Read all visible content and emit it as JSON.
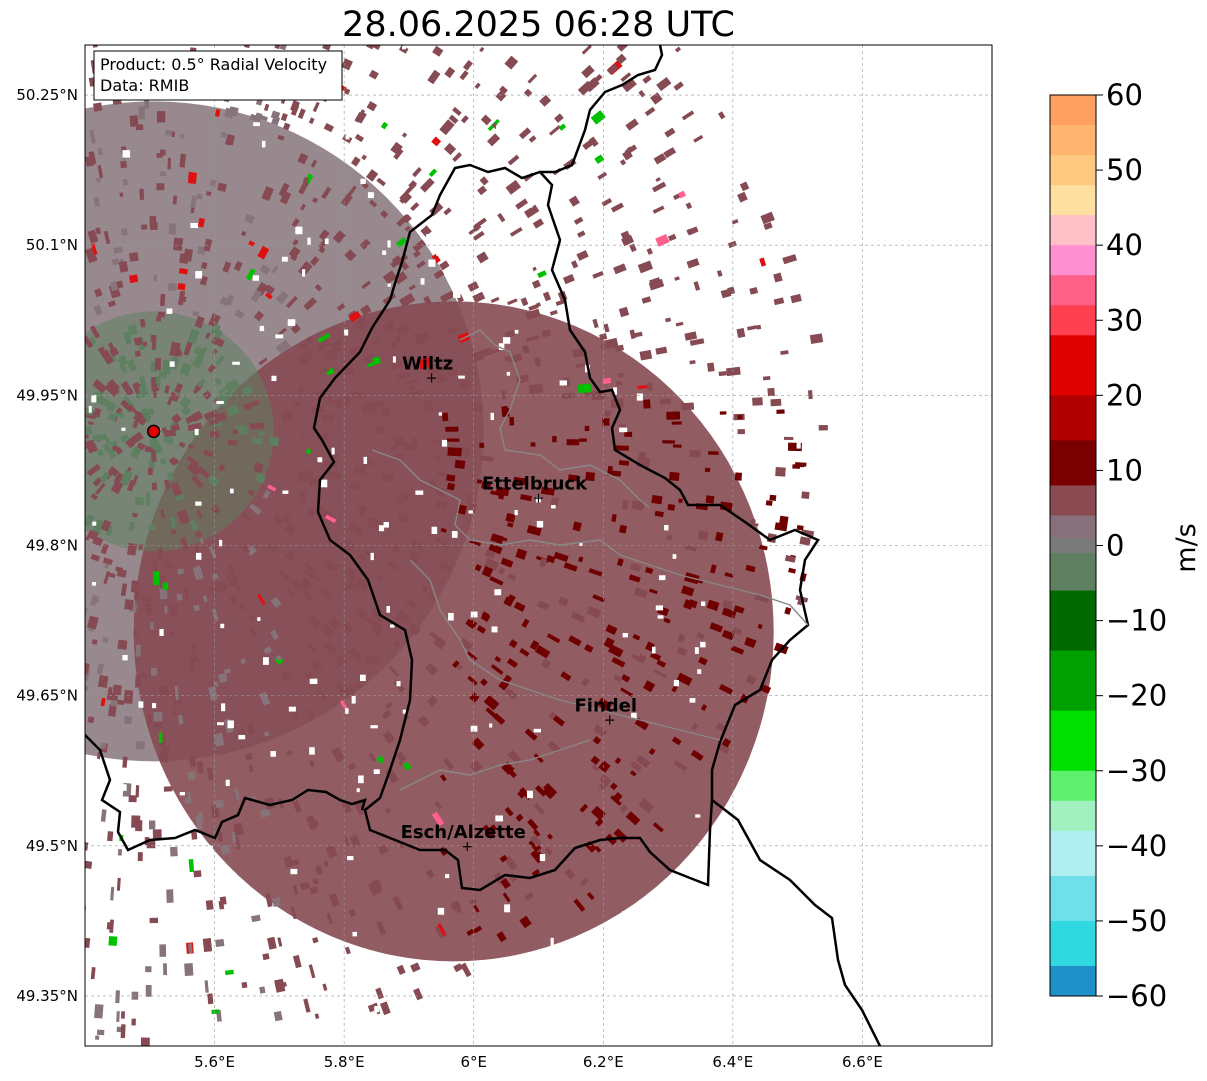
{
  "title": "28.06.2025 06:28 UTC",
  "info_box": {
    "product": "Product: 0.5° Radial Velocity",
    "data": "Data: RMIB"
  },
  "axes": {
    "x_ticks": [
      {
        "value": 5.6,
        "label": "5.6°E"
      },
      {
        "value": 5.8,
        "label": "5.8°E"
      },
      {
        "value": 6.0,
        "label": "6°E"
      },
      {
        "value": 6.2,
        "label": "6.2°E"
      },
      {
        "value": 6.4,
        "label": "6.4°E"
      },
      {
        "value": 6.6,
        "label": "6.6°E"
      }
    ],
    "y_ticks": [
      {
        "value": 50.25,
        "label": "50.25°N"
      },
      {
        "value": 50.1,
        "label": "50.1°N"
      },
      {
        "value": 49.95,
        "label": "49.95°N"
      },
      {
        "value": 49.8,
        "label": "49.8°N"
      },
      {
        "value": 49.65,
        "label": "49.65°N"
      },
      {
        "value": 49.5,
        "label": "49.5°N"
      },
      {
        "value": 49.35,
        "label": "49.35°N"
      }
    ],
    "lon_range": [
      5.4,
      6.8
    ],
    "lat_range": [
      49.3,
      50.3
    ],
    "grid": true
  },
  "cities": [
    {
      "name": "Wiltz",
      "lon": 5.935,
      "lat": 49.968
    },
    {
      "name": "Ettelbruck",
      "lon": 6.1,
      "lat": 49.848
    },
    {
      "name": "Findel",
      "lon": 6.21,
      "lat": 49.626
    },
    {
      "name": "Esch/Alzette",
      "lon": 5.99,
      "lat": 49.5
    }
  ],
  "radar_site": {
    "lon": 5.506,
    "lat": 49.914
  },
  "colorbar": {
    "label": "m/s",
    "min": -60,
    "max": 60,
    "ticks": [
      {
        "value": 60,
        "label": "60"
      },
      {
        "value": 50,
        "label": "50"
      },
      {
        "value": 40,
        "label": "40"
      },
      {
        "value": 30,
        "label": "30"
      },
      {
        "value": 20,
        "label": "20"
      },
      {
        "value": 10,
        "label": "10"
      },
      {
        "value": 0,
        "label": "0"
      },
      {
        "value": -10,
        "label": "−10"
      },
      {
        "value": -20,
        "label": "−20"
      },
      {
        "value": -30,
        "label": "−30"
      },
      {
        "value": -40,
        "label": "−40"
      },
      {
        "value": -50,
        "label": "−50"
      },
      {
        "value": -60,
        "label": "−60"
      }
    ],
    "stops": [
      {
        "from": 56,
        "to": 60,
        "color": "#ffa060"
      },
      {
        "from": 52,
        "to": 56,
        "color": "#ffb56e"
      },
      {
        "from": 48,
        "to": 52,
        "color": "#ffc880"
      },
      {
        "from": 44,
        "to": 48,
        "color": "#ffe0a0"
      },
      {
        "from": 40,
        "to": 44,
        "color": "#ffc0c8"
      },
      {
        "from": 36,
        "to": 40,
        "color": "#ff90d0"
      },
      {
        "from": 32,
        "to": 36,
        "color": "#ff6088"
      },
      {
        "from": 28,
        "to": 32,
        "color": "#ff4050"
      },
      {
        "from": 20,
        "to": 28,
        "color": "#e00000"
      },
      {
        "from": 14,
        "to": 20,
        "color": "#b00000"
      },
      {
        "from": 8,
        "to": 14,
        "color": "#7a0000"
      },
      {
        "from": 4,
        "to": 8,
        "color": "#8a4a52"
      },
      {
        "from": 1,
        "to": 4,
        "color": "#86707a"
      },
      {
        "from": -1,
        "to": 1,
        "color": "#7a7a7a"
      },
      {
        "from": -6,
        "to": -1,
        "color": "#5e8060"
      },
      {
        "from": -14,
        "to": -6,
        "color": "#006a00"
      },
      {
        "from": -22,
        "to": -14,
        "color": "#00a000"
      },
      {
        "from": -30,
        "to": -22,
        "color": "#00e000"
      },
      {
        "from": -34,
        "to": -30,
        "color": "#60f070"
      },
      {
        "from": -38,
        "to": -34,
        "color": "#a0f0c0"
      },
      {
        "from": -44,
        "to": -38,
        "color": "#b0eef0"
      },
      {
        "from": -50,
        "to": -44,
        "color": "#70e0e8"
      },
      {
        "from": -56,
        "to": -50,
        "color": "#30d8e0"
      },
      {
        "from": -60,
        "to": -56,
        "color": "#2090c8"
      }
    ]
  },
  "echo_colors": {
    "outbound_strong": "#6e0000",
    "outbound_weak": "#864a52",
    "near_zero": "#86747a",
    "inbound": "#5e8060",
    "inbound_strong": "#00c000",
    "outbound_high": "#e01010",
    "pink": "#ff6090"
  }
}
